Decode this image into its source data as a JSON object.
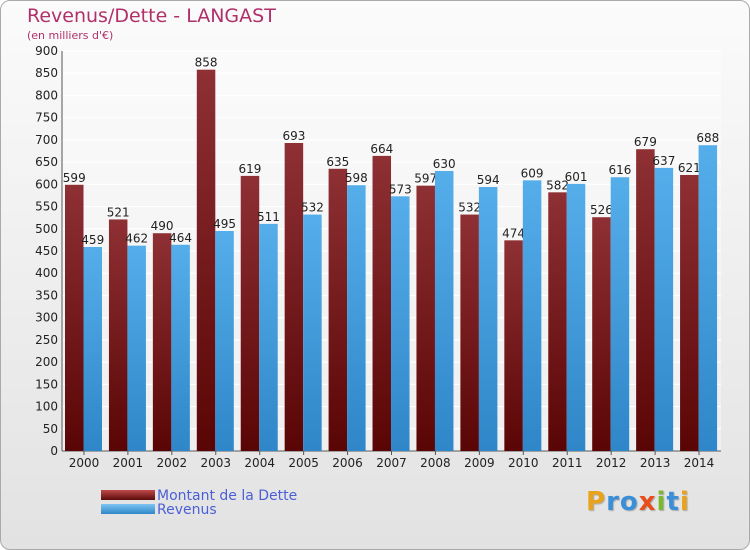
{
  "chart_data": {
    "type": "bar",
    "title": "Revenus/Dette - LANGAST",
    "subtitle": "(en milliers d'€)",
    "xlabel": "",
    "ylabel": "",
    "ylim": [
      0,
      900
    ],
    "yticks": [
      0,
      50,
      100,
      150,
      200,
      250,
      300,
      350,
      400,
      450,
      500,
      550,
      600,
      650,
      700,
      750,
      800,
      850,
      900
    ],
    "grid": true,
    "legend_position": "bottom-left",
    "categories": [
      "2000",
      "2001",
      "2002",
      "2003",
      "2004",
      "2005",
      "2006",
      "2007",
      "2008",
      "2009",
      "2010",
      "2011",
      "2012",
      "2013",
      "2014"
    ],
    "series": [
      {
        "name": "Montant de la Dette",
        "color": "#8b2b2e",
        "values": [
          599,
          521,
          490,
          858,
          619,
          693,
          635,
          664,
          597,
          532,
          474,
          582,
          526,
          679,
          621
        ]
      },
      {
        "name": "Revenus",
        "color": "#4da6e6",
        "values": [
          459,
          462,
          464,
          495,
          511,
          532,
          598,
          573,
          630,
          594,
          609,
          601,
          616,
          637,
          688
        ]
      }
    ]
  },
  "branding": {
    "logo_text": "Proxiti",
    "logo_letters": [
      {
        "ch": "P",
        "color": "#e8a21c"
      },
      {
        "ch": "r",
        "color": "#3a8fd8"
      },
      {
        "ch": "o",
        "color": "#3a8fd8"
      },
      {
        "ch": "x",
        "color": "#e84d1c"
      },
      {
        "ch": "i",
        "color": "#7ab82e"
      },
      {
        "ch": "t",
        "color": "#3a8fd8"
      },
      {
        "ch": "i",
        "color": "#e8a21c"
      }
    ]
  }
}
